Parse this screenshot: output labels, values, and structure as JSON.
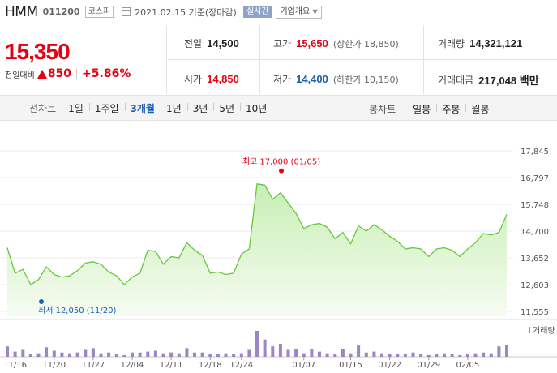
{
  "header": {
    "name": "HMM",
    "code": "011200",
    "market": "코스피",
    "date": "2021.02.15 기준(장마감)",
    "realtime": "실시간",
    "company_info": "기업개요"
  },
  "quote": {
    "price": "15,350",
    "change_label": "전일대비",
    "change_amount": "850",
    "change_percent": "+5.86%"
  },
  "stats": {
    "prev_label": "전일",
    "prev": "14,500",
    "high_label": "고가",
    "high": "15,650",
    "upper_label": "(상한가 18,850)",
    "volume_label": "거래량",
    "volume": "14,321,121",
    "open_label": "시가",
    "open": "14,850",
    "low_label": "저가",
    "low": "14,400",
    "lower_label": "(하한가 10,150)",
    "amount_label": "거래대금",
    "amount": "217,048 백만"
  },
  "period": {
    "label": "선차트",
    "items": [
      "1일",
      "1주일",
      "3개월",
      "1년",
      "3년",
      "5년",
      "10년"
    ],
    "active": "3개월",
    "candle_label": "봉차트",
    "candle_items": [
      "일봉",
      "주봉",
      "월봉"
    ]
  },
  "chart_data": {
    "type": "line",
    "y_ticks": [
      "17,845",
      "16,797",
      "15,748",
      "14,700",
      "13,652",
      "12,603",
      "11,555"
    ],
    "ylim": [
      11555,
      17845
    ],
    "x_ticks": [
      "11/16",
      "11/20",
      "11/27",
      "12/04",
      "12/11",
      "12/18",
      "12/24",
      "01/07",
      "01/15",
      "01/22",
      "01/29",
      "02/05"
    ],
    "max_label": "최고 17,000 (01/05)",
    "min_label": "최저 12,050 (11/20)",
    "volume_legend": "거래량",
    "colors": {
      "line": "#64c93c",
      "fill_top": "#c8eeb4",
      "volume": "#9b86c3",
      "max": "#e60012",
      "min": "#1a5fb4"
    },
    "values": [
      14050,
      13050,
      13200,
      12600,
      12800,
      13300,
      13000,
      12900,
      12950,
      13150,
      13450,
      13500,
      13400,
      13100,
      12950,
      12600,
      12900,
      13050,
      13950,
      13900,
      13400,
      13700,
      13650,
      14250,
      13950,
      13750,
      13050,
      13100,
      13000,
      13050,
      13800,
      14000,
      16550,
      16500,
      15950,
      16200,
      15800,
      15400,
      14800,
      14950,
      15000,
      14850,
      14400,
      14650,
      14200,
      14900,
      14700,
      14950,
      14750,
      14500,
      14300,
      14000,
      14050,
      14000,
      13700,
      14000,
      14050,
      13950,
      13700,
      14000,
      14250,
      14600,
      14550,
      14650,
      15350
    ],
    "volumes": [
      12,
      6,
      8,
      3,
      4,
      11,
      7,
      5,
      4,
      5,
      8,
      10,
      4,
      5,
      3,
      2,
      5,
      5,
      6,
      7,
      4,
      5,
      4,
      10,
      5,
      5,
      3,
      3,
      4,
      3,
      4,
      8,
      30,
      20,
      12,
      15,
      8,
      9,
      4,
      9,
      6,
      4,
      3,
      9,
      4,
      13,
      5,
      6,
      4,
      3,
      3,
      3,
      5,
      3,
      2,
      3,
      4,
      3,
      2,
      3,
      4,
      5,
      4,
      12,
      14
    ]
  }
}
